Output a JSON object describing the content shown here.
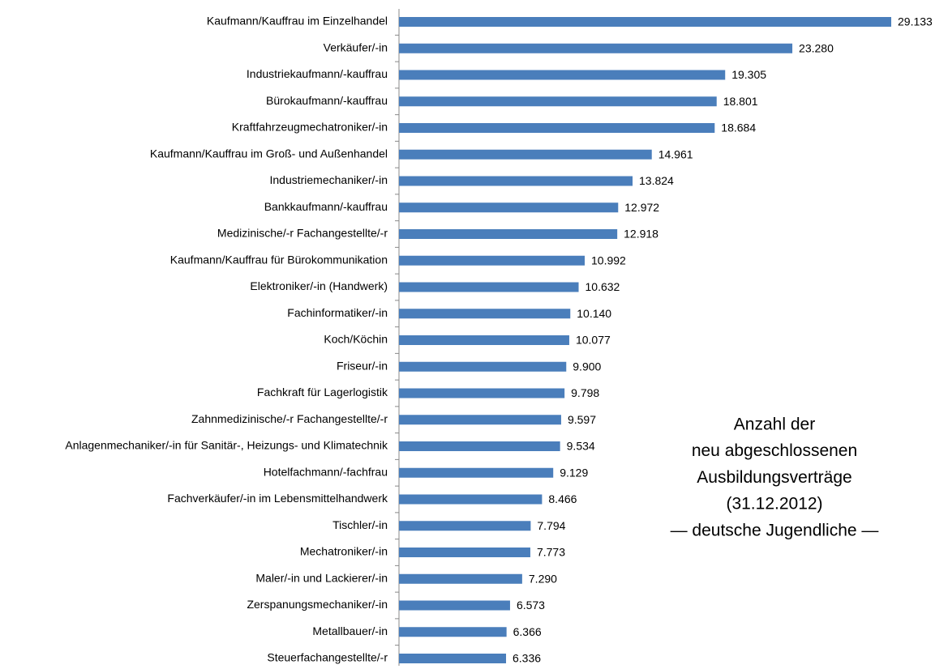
{
  "chart_data": {
    "type": "hbar",
    "categories": [
      "Kaufmann/Kauffrau im Einzelhandel",
      "Verkäufer/-in",
      "Industriekaufmann/-kauffrau",
      "Bürokaufmann/-kauffrau",
      "Kraftfahrzeugmechatroniker/-in",
      "Kaufmann/Kauffrau im Groß- und Außenhandel",
      "Industriemechaniker/-in",
      "Bankkaufmann/-kauffrau",
      "Medizinische/-r Fachangestellte/-r",
      "Kaufmann/Kauffrau für Bürokommunikation",
      "Elektroniker/-in (Handwerk)",
      "Fachinformatiker/-in",
      "Koch/Köchin",
      "Friseur/-in",
      "Fachkraft für Lagerlogistik",
      "Zahnmedizinische/-r Fachangestellte/-r",
      "Anlagenmechaniker/-in für Sanitär-, Heizungs- und Klimatechnik",
      "Hotelfachmann/-fachfrau",
      "Fachverkäufer/-in im Lebensmittelhandwerk",
      "Tischler/-in",
      "Mechatroniker/-in",
      "Maler/-in und Lackierer/-in",
      "Zerspanungsmechaniker/-in",
      "Metallbauer/-in",
      "Steuerfachangestellte/-r"
    ],
    "values": [
      29133,
      23280,
      19305,
      18801,
      18684,
      14961,
      13824,
      12972,
      12918,
      10992,
      10632,
      10140,
      10077,
      9900,
      9798,
      9597,
      9534,
      9129,
      8466,
      7794,
      7773,
      7290,
      6573,
      6366,
      6336
    ],
    "value_labels": [
      "29.133",
      "23.280",
      "19.305",
      "18.801",
      "18.684",
      "14.961",
      "13.824",
      "12.972",
      "12.918",
      "10.992",
      "10.632",
      "10.140",
      "10.077",
      "9.900",
      "9.798",
      "9.597",
      "9.534",
      "9.129",
      "8.466",
      "7.794",
      "7.773",
      "7.290",
      "6.573",
      "6.366",
      "6.336"
    ],
    "color": "#4a7ebb",
    "annotation": [
      "Anzahl der",
      "neu abgeschlossenen",
      "Ausbildungsverträge",
      "(31.12.2012)",
      "— deutsche Jugendliche —"
    ]
  }
}
